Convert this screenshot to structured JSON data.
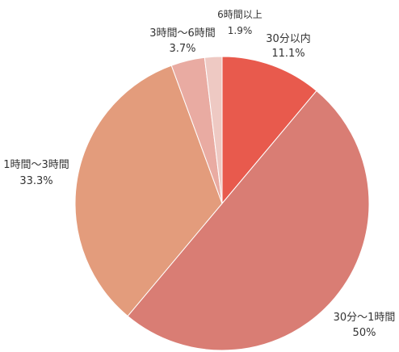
{
  "chart_data": {
    "type": "pie",
    "start_angle_deg": -90,
    "direction": "clockwise",
    "slices": [
      {
        "label": "30分以内",
        "value": 11.1,
        "value_label": "11.1%",
        "color": "#e85a4d"
      },
      {
        "label": "30分～1時間",
        "value": 50,
        "value_label": "50%",
        "color": "#d97d74"
      },
      {
        "label": "1時間～3時間",
        "value": 33.3,
        "value_label": "33.3%",
        "color": "#e39c7c"
      },
      {
        "label": "3時間～6時間",
        "value": 3.7,
        "value_label": "3.7%",
        "color": "#e9aba2"
      },
      {
        "label": "6時間以上",
        "value": 1.9,
        "value_label": "1.9%",
        "color": "#eec9c3"
      }
    ]
  }
}
